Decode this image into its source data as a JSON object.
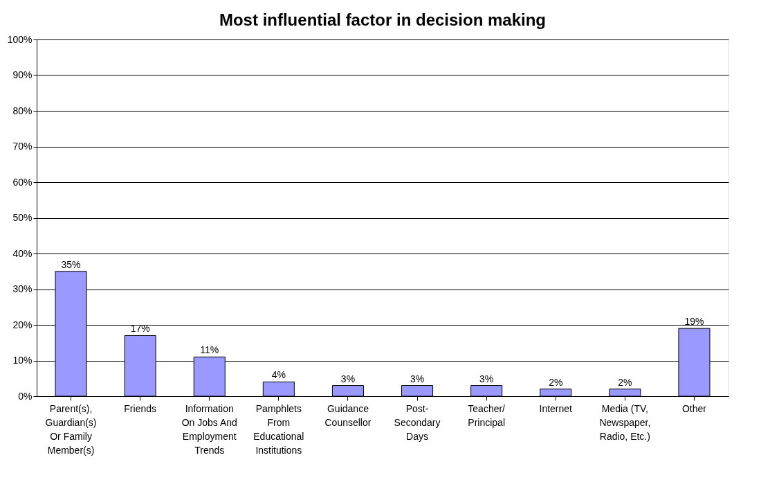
{
  "chart_data": {
    "type": "bar",
    "title": "Most influential factor in decision making",
    "categories": [
      "Parent(s), Guardian(s) Or Family Member(s)",
      "Friends",
      "Information On Jobs And Employment Trends",
      "Pamphlets From Educational Institutions",
      "Guidance Counsellor",
      "Post-Secondary Days",
      "Teacher/Principal",
      "Internet",
      "Media (TV, Newspaper, Radio, Etc.)",
      "Other"
    ],
    "values": [
      35,
      17,
      11,
      4,
      3,
      3,
      3,
      2,
      2,
      19
    ],
    "value_labels": [
      "35%",
      "17%",
      "11%",
      "4%",
      "3%",
      "3%",
      "3%",
      "2%",
      "2%",
      "19%"
    ],
    "color": "#9999ff",
    "ylim": [
      0,
      100
    ],
    "yticks": [
      {
        "value": 0,
        "label": "0%"
      },
      {
        "value": 10,
        "label": "10%"
      },
      {
        "value": 20,
        "label": "20%"
      },
      {
        "value": 30,
        "label": "30%"
      },
      {
        "value": 40,
        "label": "40%"
      },
      {
        "value": 50,
        "label": "50%"
      },
      {
        "value": 60,
        "label": "60%"
      },
      {
        "value": 70,
        "label": "70%"
      },
      {
        "value": 80,
        "label": "80%"
      },
      {
        "value": 90,
        "label": "90%"
      },
      {
        "value": 100,
        "label": "100%"
      }
    ],
    "grid": "y"
  }
}
